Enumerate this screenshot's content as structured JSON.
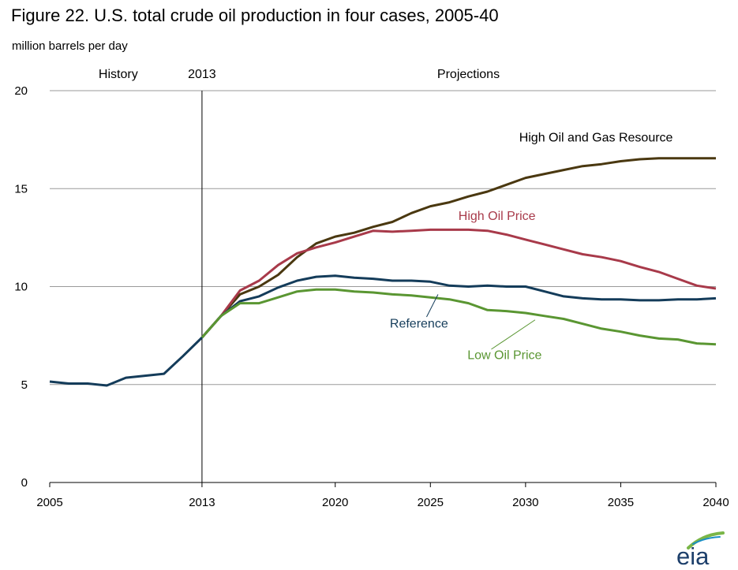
{
  "chart_data": {
    "type": "line",
    "title": "Figure 22. U.S. total crude oil production in four cases, 2005-40",
    "ylabel": "million barrels per day",
    "xlabel": "",
    "xlim": [
      2005,
      2040
    ],
    "ylim": [
      0,
      20
    ],
    "x_ticks": [
      "2005",
      "2013",
      "2020",
      "2025",
      "2030",
      "2035",
      "2040"
    ],
    "y_ticks": [
      "0",
      "5",
      "10",
      "15",
      "20"
    ],
    "grid": "horizontal",
    "annotations": {
      "divider_year": 2013,
      "history_label": "History",
      "divider_label": "2013",
      "projections_label": "Projections"
    },
    "series": [
      {
        "name": "High Oil and Gas Resource",
        "color": "#4a3810",
        "label_pos": [
          2033.7,
          17.4
        ],
        "label_anchor": "middle",
        "x": [
          2013,
          2014,
          2015,
          2016,
          2017,
          2018,
          2019,
          2020,
          2021,
          2022,
          2023,
          2024,
          2025,
          2026,
          2027,
          2028,
          2029,
          2030,
          2031,
          2032,
          2033,
          2034,
          2035,
          2036,
          2037,
          2038,
          2039,
          2040
        ],
        "values": [
          7.4,
          8.5,
          9.6,
          10.0,
          10.6,
          11.5,
          12.2,
          12.55,
          12.75,
          13.05,
          13.3,
          13.75,
          14.1,
          14.3,
          14.6,
          14.85,
          15.2,
          15.55,
          15.75,
          15.95,
          16.15,
          16.25,
          16.4,
          16.5,
          16.55,
          16.55,
          16.55,
          16.55
        ]
      },
      {
        "name": "High Oil Price",
        "color": "#a83a4a",
        "label_pos": [
          2028.5,
          13.4
        ],
        "label_anchor": "middle",
        "x": [
          2013,
          2014,
          2015,
          2016,
          2017,
          2018,
          2019,
          2020,
          2021,
          2022,
          2023,
          2024,
          2025,
          2026,
          2027,
          2028,
          2029,
          2030,
          2031,
          2032,
          2033,
          2034,
          2035,
          2036,
          2037,
          2038,
          2039,
          2040
        ],
        "values": [
          7.4,
          8.5,
          9.8,
          10.3,
          11.1,
          11.7,
          12.0,
          12.25,
          12.55,
          12.85,
          12.8,
          12.85,
          12.9,
          12.9,
          12.9,
          12.85,
          12.65,
          12.4,
          12.15,
          11.9,
          11.65,
          11.5,
          11.3,
          11.0,
          10.75,
          10.4,
          10.05,
          9.9
        ]
      },
      {
        "name": "Reference",
        "color": "#143c5a",
        "label_pos": [
          2024.4,
          7.9
        ],
        "label_anchor": "middle",
        "leader": [
          [
            2024.8,
            8.45
          ],
          [
            2025.4,
            9.6
          ]
        ],
        "x": [
          2005,
          2006,
          2007,
          2008,
          2009,
          2010,
          2011,
          2012,
          2013,
          2014,
          2015,
          2016,
          2017,
          2018,
          2019,
          2020,
          2021,
          2022,
          2023,
          2024,
          2025,
          2026,
          2027,
          2028,
          2029,
          2030,
          2031,
          2032,
          2033,
          2034,
          2035,
          2036,
          2037,
          2038,
          2039,
          2040
        ],
        "values": [
          5.15,
          5.05,
          5.05,
          4.95,
          5.35,
          5.45,
          5.55,
          6.45,
          7.4,
          8.5,
          9.25,
          9.5,
          9.95,
          10.3,
          10.5,
          10.55,
          10.45,
          10.4,
          10.3,
          10.3,
          10.25,
          10.05,
          10.0,
          10.05,
          10.0,
          10.0,
          9.75,
          9.5,
          9.4,
          9.35,
          9.35,
          9.3,
          9.3,
          9.35,
          9.35,
          9.4
        ]
      },
      {
        "name": "Low Oil Price",
        "color": "#5a9632",
        "label_pos": [
          2028.9,
          6.3
        ],
        "label_anchor": "middle",
        "leader": [
          [
            2028.2,
            6.8
          ],
          [
            2030.5,
            8.3
          ]
        ],
        "x": [
          2013,
          2014,
          2015,
          2016,
          2017,
          2018,
          2019,
          2020,
          2021,
          2022,
          2023,
          2024,
          2025,
          2026,
          2027,
          2028,
          2029,
          2030,
          2031,
          2032,
          2033,
          2034,
          2035,
          2036,
          2037,
          2038,
          2039,
          2040
        ],
        "values": [
          7.4,
          8.5,
          9.15,
          9.15,
          9.45,
          9.75,
          9.85,
          9.85,
          9.75,
          9.7,
          9.6,
          9.55,
          9.45,
          9.35,
          9.15,
          8.8,
          8.75,
          8.65,
          8.5,
          8.35,
          8.1,
          7.85,
          7.7,
          7.5,
          7.35,
          7.3,
          7.1,
          7.05
        ]
      }
    ]
  },
  "logo_text": "eia"
}
